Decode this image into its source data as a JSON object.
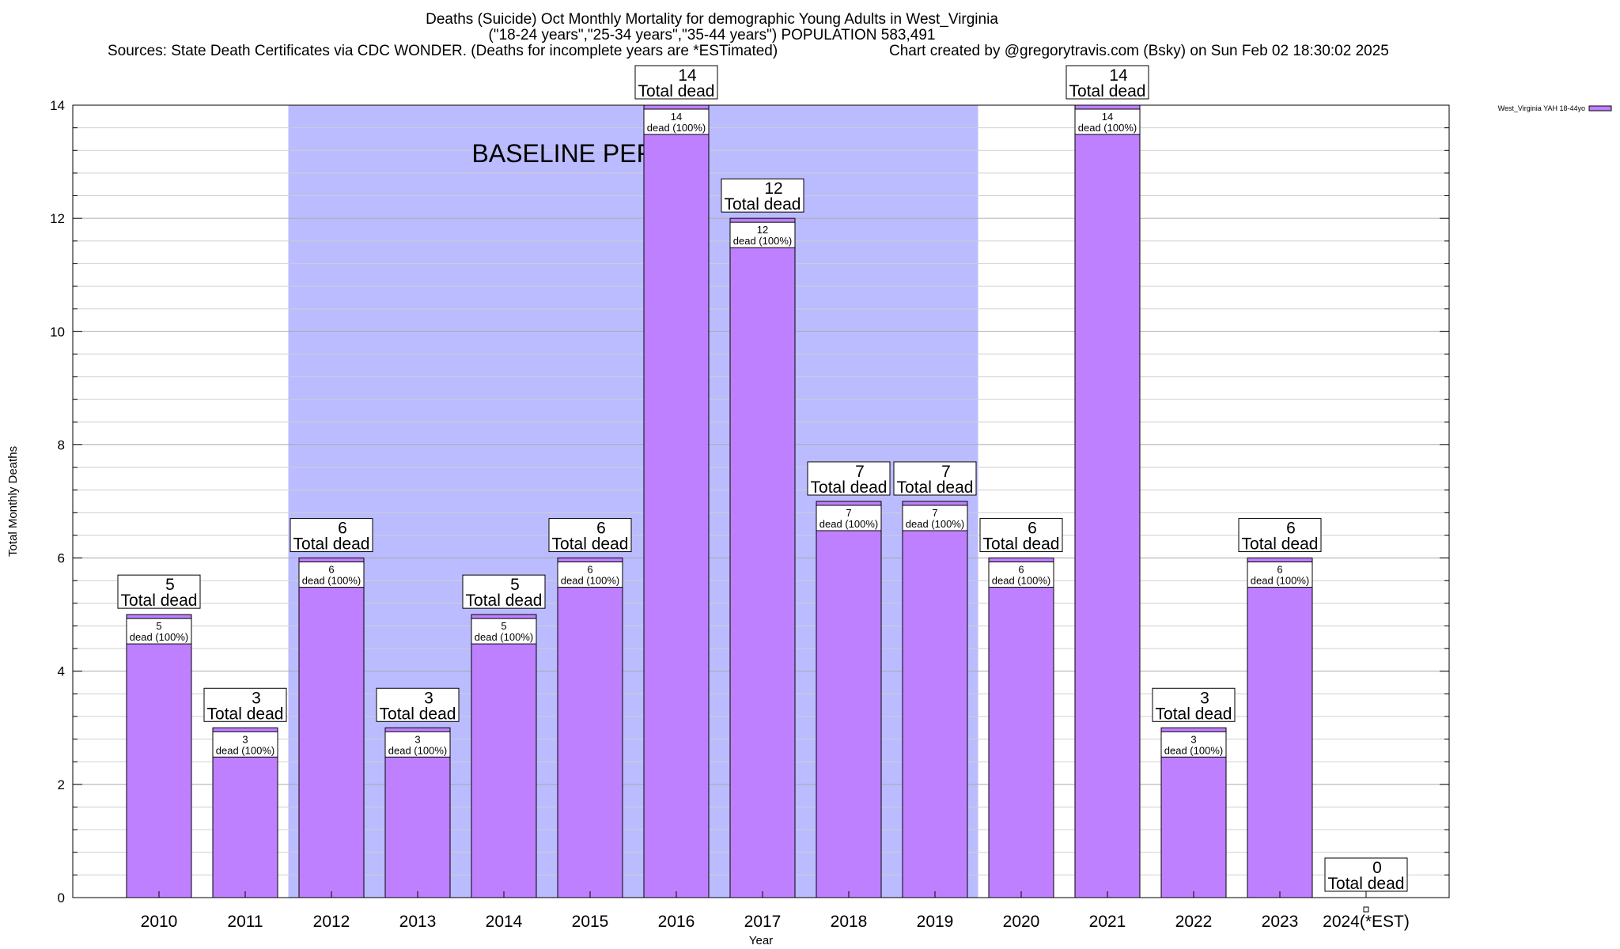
{
  "header": {
    "title": "Deaths (Suicide) Oct Monthly Mortality for demographic Young Adults in West_Virginia",
    "subtitle": "(\"18-24 years\",\"25-34 years\",\"35-44 years\") POPULATION 583,491",
    "sources": "Sources: State Death Certificates via CDC WONDER. (Deaths for incomplete years are *ESTimated)",
    "credit": "Chart created by @gregorytravis.com (Bsky) on Sun Feb 02 18:30:02 2025"
  },
  "chart_data": {
    "type": "bar",
    "categories": [
      "2010",
      "2011",
      "2012",
      "2013",
      "2014",
      "2015",
      "2016",
      "2017",
      "2018",
      "2019",
      "2020",
      "2021",
      "2022",
      "2023",
      "2024(*EST)"
    ],
    "series": [
      {
        "name": "West_Virginia YAH 18-44yo",
        "values": [
          5,
          3,
          6,
          3,
          5,
          6,
          14,
          12,
          7,
          7,
          6,
          14,
          3,
          6,
          0
        ],
        "color": "#bf80ff"
      }
    ],
    "bar_labels": [
      "5",
      "3",
      "6",
      "3",
      "5",
      "6",
      "14",
      "12",
      "7",
      "7",
      "6",
      "14",
      "3",
      "6",
      "0"
    ],
    "total_label": "Total dead",
    "inner_label": "dead (100%)",
    "xlabel": "Year",
    "ylabel": "Total Monthly Deaths",
    "ylim": [
      0,
      14
    ],
    "yticks": [
      "0",
      "2",
      "4",
      "6",
      "8",
      "10",
      "12",
      "14"
    ],
    "baseline": {
      "label": "BASELINE PERIOD",
      "from": "2012",
      "to": "2019",
      "color": "#bbbbff"
    },
    "grid": true,
    "legend_position": "top-right"
  }
}
